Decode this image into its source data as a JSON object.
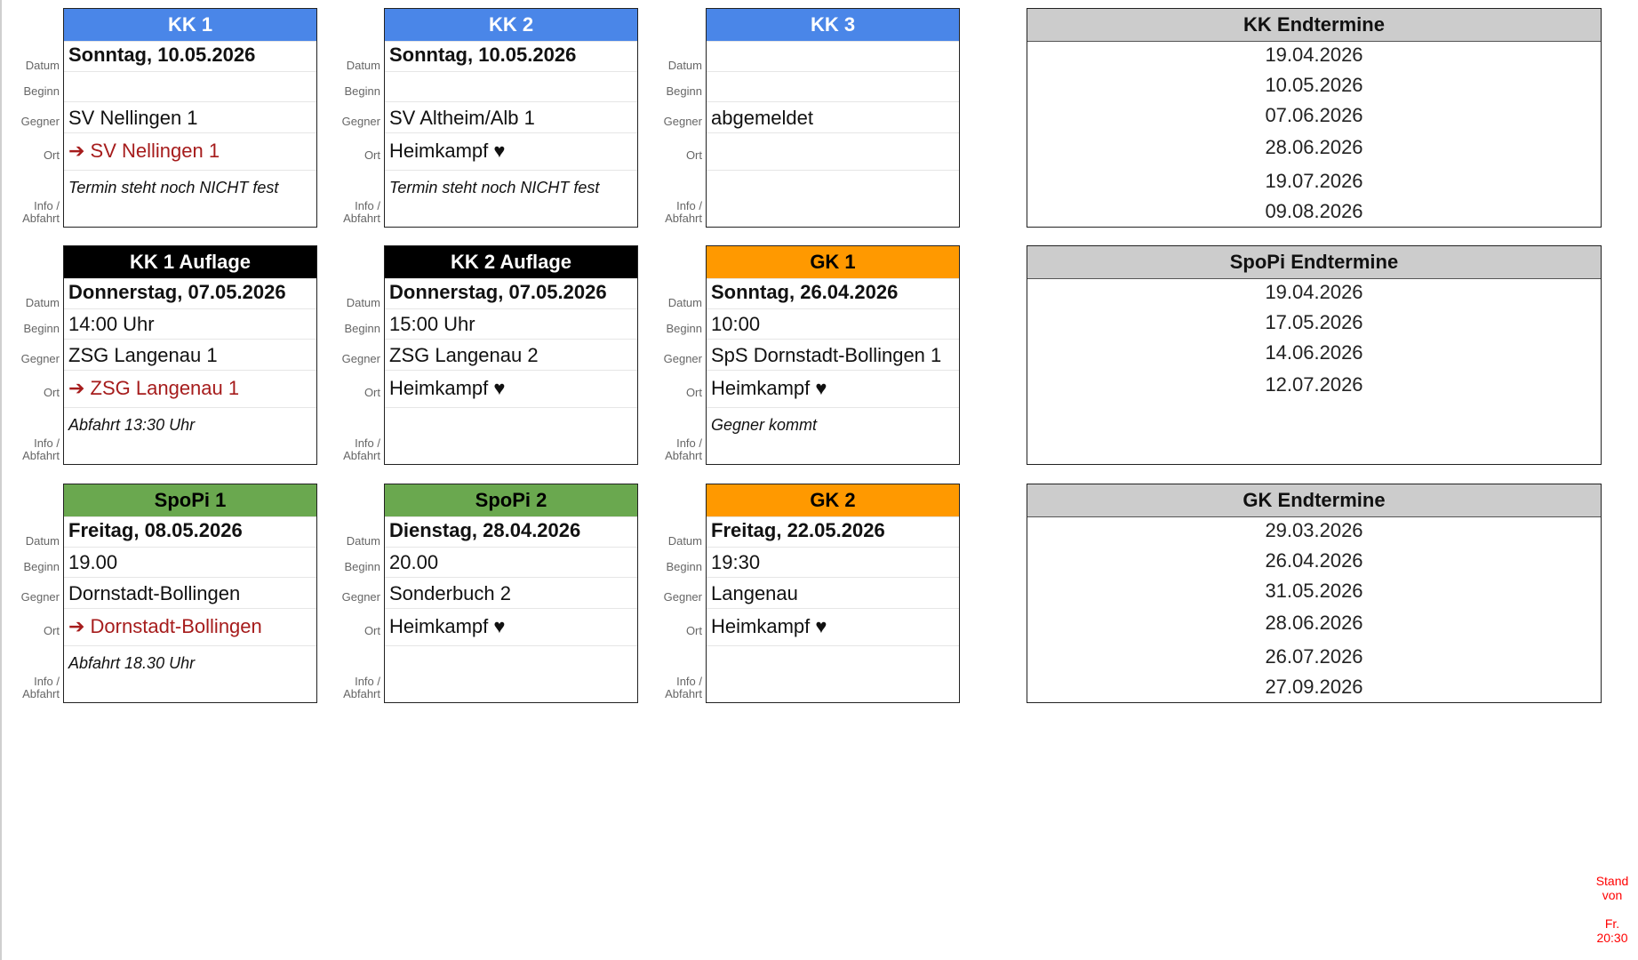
{
  "labels": {
    "datum": "Datum",
    "beginn": "Beginn",
    "gegner": "Gegner",
    "ort": "Ort",
    "info_1": "Info /",
    "info_2": "Abfahrt"
  },
  "colors": {
    "blue": "#4a86e8",
    "black": "#000000",
    "orange": "#ff9900",
    "green": "#6aa84f",
    "grey": "#cccccc",
    "away_text": "#a61c1c",
    "stand": "#ff0000"
  },
  "cards": [
    {
      "title": "KK 1",
      "header_bg": "#4a86e8",
      "header_fg": "#ffffff",
      "datum": "Sonntag, 10.05.2026",
      "beginn": "",
      "gegner": "SV Nellingen 1",
      "ort": "➔ SV Nellingen 1",
      "ort_type": "away",
      "info": "Termin steht noch NICHT fest"
    },
    {
      "title": "KK 2",
      "header_bg": "#4a86e8",
      "header_fg": "#ffffff",
      "datum": "Sonntag, 10.05.2026",
      "beginn": "",
      "gegner": "SV Altheim/Alb 1",
      "ort": "Heimkampf ♥",
      "ort_type": "home",
      "info": "Termin steht noch NICHT fest"
    },
    {
      "title": "KK 3",
      "header_bg": "#4a86e8",
      "header_fg": "#ffffff",
      "datum": "",
      "beginn": "",
      "gegner": "abgemeldet",
      "ort": "",
      "ort_type": "home",
      "info": ""
    },
    {
      "title": "KK 1 Auflage",
      "header_bg": "#000000",
      "header_fg": "#ffffff",
      "datum": "Donnerstag, 07.05.2026",
      "beginn": "14:00 Uhr",
      "gegner": "ZSG Langenau 1",
      "ort": "➔ ZSG Langenau 1",
      "ort_type": "away",
      "info": "Abfahrt 13:30 Uhr"
    },
    {
      "title": "KK 2 Auflage",
      "header_bg": "#000000",
      "header_fg": "#ffffff",
      "datum": "Donnerstag, 07.05.2026",
      "beginn": "15:00 Uhr",
      "gegner": "ZSG Langenau 2",
      "ort": "Heimkampf ♥",
      "ort_type": "home",
      "info": ""
    },
    {
      "title": "GK 1",
      "header_bg": "#ff9900",
      "header_fg": "#000000",
      "datum": "Sonntag, 26.04.2026",
      "beginn": "10:00",
      "gegner": "SpS Dornstadt-Bollingen 1",
      "ort": "Heimkampf ♥",
      "ort_type": "home",
      "info": "Gegner kommt"
    },
    {
      "title": "SpoPi 1",
      "header_bg": "#6aa84f",
      "header_fg": "#000000",
      "datum": "Freitag, 08.05.2026",
      "beginn": "19.00",
      "gegner": "Dornstadt-Bollingen",
      "ort": "➔ Dornstadt-Bollingen",
      "ort_type": "away",
      "info": "Abfahrt 18.30 Uhr"
    },
    {
      "title": "SpoPi 2",
      "header_bg": "#6aa84f",
      "header_fg": "#000000",
      "datum": "Dienstag, 28.04.2026",
      "beginn": "20.00",
      "gegner": "Sonderbuch 2",
      "ort": "Heimkampf ♥",
      "ort_type": "home",
      "info": ""
    },
    {
      "title": "GK 2",
      "header_bg": "#ff9900",
      "header_fg": "#000000",
      "datum": "Freitag, 22.05.2026",
      "beginn": "19:30",
      "gegner": "Langenau",
      "ort": "Heimkampf ♥",
      "ort_type": "home",
      "info": ""
    }
  ],
  "endtermine": [
    {
      "title": "KK Endtermine",
      "dates": [
        "19.04.2026",
        "10.05.2026",
        "07.06.2026",
        "28.06.2026",
        "19.07.2026",
        "09.08.2026"
      ]
    },
    {
      "title": "SpoPi Endtermine",
      "dates": [
        "19.04.2026",
        "17.05.2026",
        "14.06.2026",
        "12.07.2026"
      ]
    },
    {
      "title": "GK Endtermine",
      "dates": [
        "29.03.2026",
        "26.04.2026",
        "31.05.2026",
        "28.06.2026",
        "26.07.2026",
        "27.09.2026"
      ]
    }
  ],
  "stand": {
    "line1": "Stand",
    "line2": "von",
    "line3": "Fr.",
    "line4": "20:30"
  }
}
